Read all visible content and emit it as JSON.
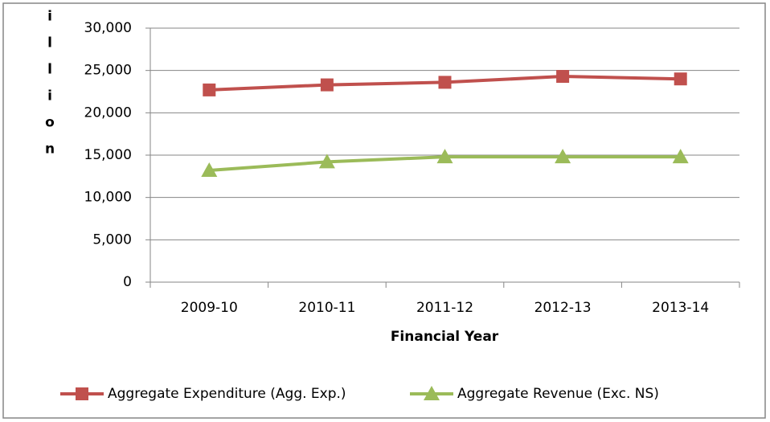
{
  "chart_data": {
    "type": "line",
    "y_label": "£ million",
    "x_label": "Financial Year",
    "categories": [
      "2009-10",
      "2010-11",
      "2011-12",
      "2012-13",
      "2013-14"
    ],
    "series": [
      {
        "name": "Aggregate Expenditure (Agg. Exp.)",
        "color": "#c0504d",
        "marker": "square",
        "values": [
          22700,
          23300,
          23600,
          24300,
          24000
        ]
      },
      {
        "name": "Aggregate Revenue (Exc. NS)",
        "color": "#9bbb59",
        "marker": "triangle",
        "values": [
          13200,
          14200,
          14800,
          14800,
          14800
        ]
      }
    ],
    "ylim": [
      0,
      30000
    ],
    "yticks": [
      0,
      {
        "value": 5000,
        "label": "5,000"
      },
      {
        "value": 10000,
        "label": "10,000"
      },
      {
        "value": 15000,
        "label": "15,000"
      },
      {
        "value": 20000,
        "label": "20,000"
      },
      {
        "value": 25000,
        "label": "25,000"
      },
      {
        "value": 30000,
        "label": "30,000"
      }
    ],
    "grid": true,
    "legend": "bottom"
  }
}
